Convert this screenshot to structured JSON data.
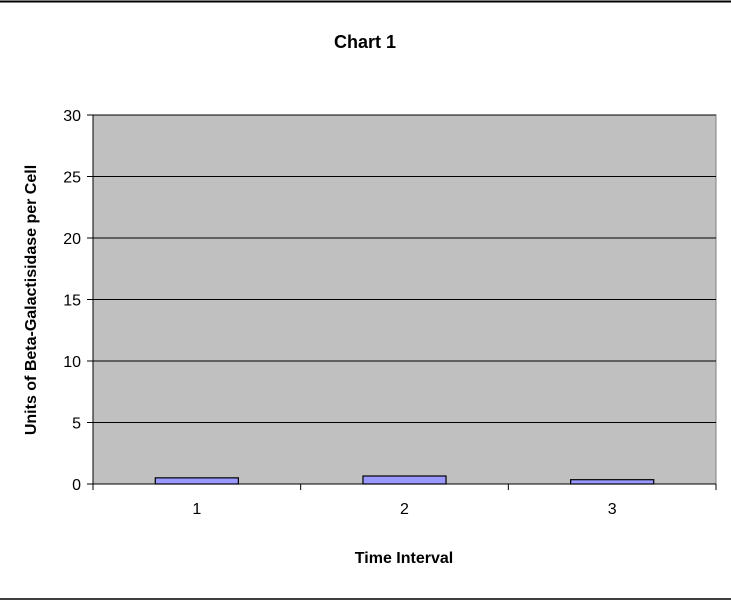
{
  "chart_data": {
    "type": "bar",
    "title": "Chart 1",
    "xlabel": "Time Interval",
    "ylabel": "Units of Beta-Galactisidase per Cell",
    "categories": [
      "1",
      "2",
      "3"
    ],
    "values": [
      0.5,
      0.65,
      0.35
    ],
    "ylim": [
      0,
      30
    ],
    "yticks": [
      0,
      5,
      10,
      15,
      20,
      25,
      30
    ],
    "grid": true,
    "legend": "none",
    "colors": {
      "plot_background": "#c0c0c0",
      "bar_fill": "#9999ff",
      "bar_stroke": "#000000",
      "gridline": "#000000"
    }
  }
}
